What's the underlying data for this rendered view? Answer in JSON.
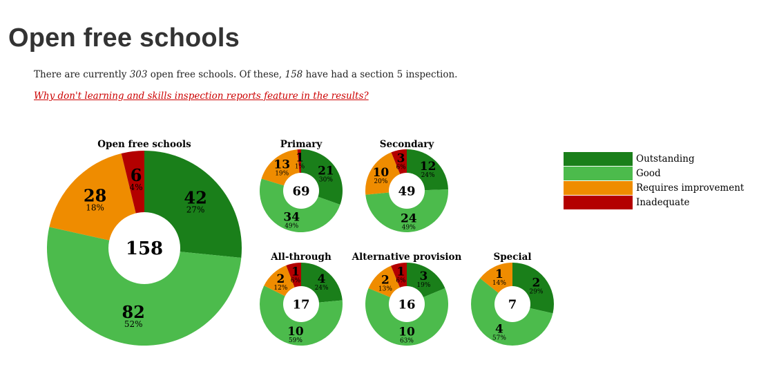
{
  "page": {
    "title": "Open free schools",
    "intro": {
      "prefix": "There are currently ",
      "total": "303",
      "middle": " open free schools. Of these, ",
      "inspected": "158",
      "suffix": " have had a section 5 inspection."
    },
    "help_link": "Why don't learning and skills inspection reports feature in the results?"
  },
  "legend": [
    {
      "label": "Outstanding",
      "color": "#1a7f1a"
    },
    {
      "label": "Good",
      "color": "#4cbb4c"
    },
    {
      "label": "Requires improvement",
      "color": "#ef8c00"
    },
    {
      "label": "Inadequate",
      "color": "#b30000"
    }
  ],
  "chart_data": [
    {
      "type": "pie",
      "title": "Open free schools",
      "total": "158",
      "categories": [
        "Outstanding",
        "Good",
        "Requires improvement",
        "Inadequate"
      ],
      "values": [
        42,
        82,
        28,
        6
      ],
      "percents": [
        "27%",
        "52%",
        "18%",
        "4%"
      ]
    },
    {
      "type": "pie",
      "title": "Primary",
      "total": "69",
      "categories": [
        "Outstanding",
        "Good",
        "Requires improvement",
        "Inadequate"
      ],
      "values": [
        21,
        34,
        13,
        1
      ],
      "percents": [
        "30%",
        "49%",
        "19%",
        "1%"
      ]
    },
    {
      "type": "pie",
      "title": "Secondary",
      "total": "49",
      "categories": [
        "Outstanding",
        "Good",
        "Requires improvement",
        "Inadequate"
      ],
      "values": [
        12,
        24,
        10,
        3
      ],
      "percents": [
        "24%",
        "49%",
        "20%",
        "6%"
      ]
    },
    {
      "type": "pie",
      "title": "All-through",
      "total": "17",
      "categories": [
        "Outstanding",
        "Good",
        "Requires improvement",
        "Inadequate"
      ],
      "values": [
        4,
        10,
        2,
        1
      ],
      "percents": [
        "24%",
        "59%",
        "12%",
        "6%"
      ]
    },
    {
      "type": "pie",
      "title": "Alternative provision",
      "total": "16",
      "categories": [
        "Outstanding",
        "Good",
        "Requires improvement",
        "Inadequate"
      ],
      "values": [
        3,
        10,
        2,
        1
      ],
      "percents": [
        "19%",
        "63%",
        "13%",
        "6%"
      ]
    },
    {
      "type": "pie",
      "title": "Special",
      "total": "7",
      "categories": [
        "Outstanding",
        "Good",
        "Requires improvement",
        "Inadequate"
      ],
      "values": [
        2,
        4,
        1,
        0
      ],
      "percents": [
        "29%",
        "57%",
        "14%",
        "0%"
      ]
    }
  ]
}
